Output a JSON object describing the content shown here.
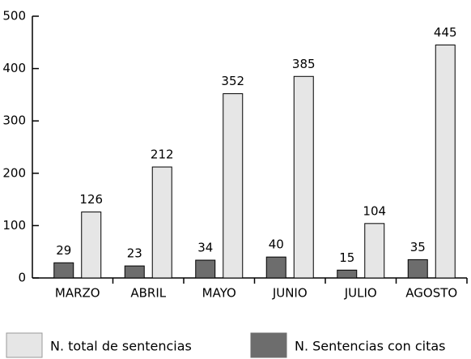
{
  "chart_data": {
    "type": "bar",
    "categories": [
      "MARZO",
      "ABRIL",
      "MAYO",
      "JUNIO",
      "JULIO",
      "AGOSTO"
    ],
    "series": [
      {
        "name": "N. total de sentencias",
        "color": "#e6e6e6",
        "values": [
          126,
          212,
          352,
          385,
          104,
          445
        ]
      },
      {
        "name": "N. Sentencias con citas",
        "color": "#6d6d6d",
        "values": [
          29,
          23,
          34,
          40,
          15,
          35
        ]
      }
    ],
    "ylim": [
      0,
      500
    ],
    "yticks": [
      0,
      100,
      200,
      300,
      400,
      500
    ],
    "grid": false,
    "legend": "bottom"
  }
}
